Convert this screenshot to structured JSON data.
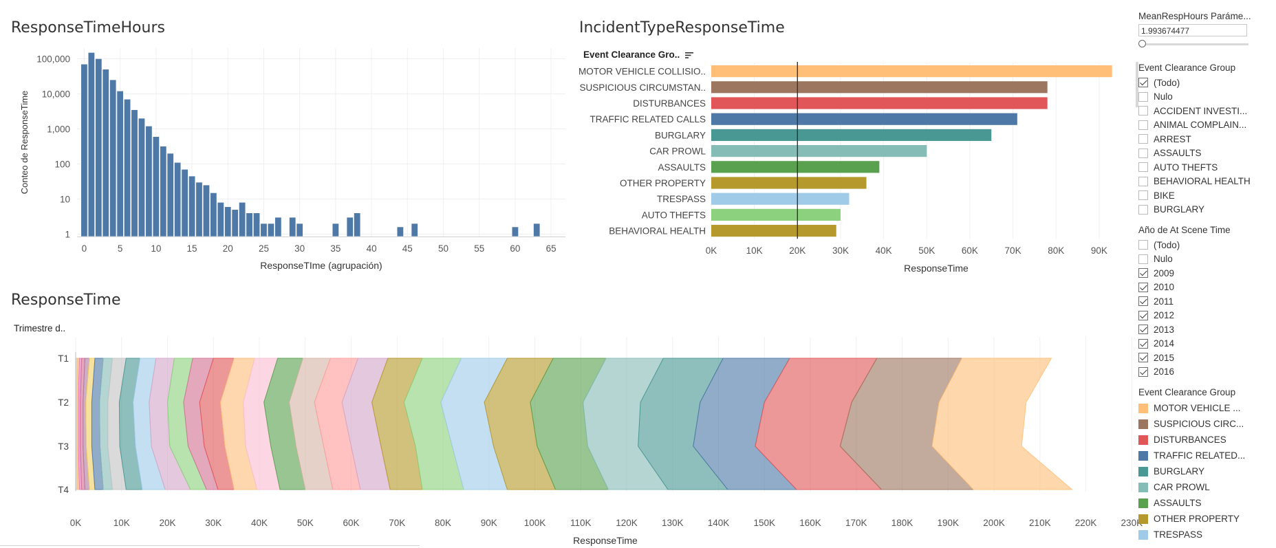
{
  "histogram": {
    "title": "ResponseTimeHours",
    "chart_data": {
      "type": "bar",
      "scale": "log",
      "ylabel": "Conteo de ResponseTime",
      "xlabel": "ResponseTIme (agrupación)",
      "xticks": [
        0,
        5,
        10,
        15,
        20,
        25,
        30,
        35,
        40,
        45,
        50,
        55,
        60,
        65
      ],
      "yticks": [
        {
          "v": 1,
          "label": "1"
        },
        {
          "v": 10,
          "label": "10"
        },
        {
          "v": 100,
          "label": "100"
        },
        {
          "v": 1000,
          "label": "1,000"
        },
        {
          "v": 10000,
          "label": "10,000"
        },
        {
          "v": 100000,
          "label": "100,000"
        }
      ],
      "bins": [
        {
          "x": 0,
          "v": 70000
        },
        {
          "x": 1,
          "v": 150000
        },
        {
          "x": 2,
          "v": 100000
        },
        {
          "x": 3,
          "v": 50000
        },
        {
          "x": 4,
          "v": 25000
        },
        {
          "x": 5,
          "v": 12000
        },
        {
          "x": 6,
          "v": 7000
        },
        {
          "x": 7,
          "v": 3500
        },
        {
          "x": 8,
          "v": 2000
        },
        {
          "x": 9,
          "v": 1200
        },
        {
          "x": 10,
          "v": 600
        },
        {
          "x": 11,
          "v": 320
        },
        {
          "x": 12,
          "v": 200
        },
        {
          "x": 13,
          "v": 110
        },
        {
          "x": 14,
          "v": 70
        },
        {
          "x": 15,
          "v": 45
        },
        {
          "x": 16,
          "v": 30
        },
        {
          "x": 17,
          "v": 25
        },
        {
          "x": 18,
          "v": 15
        },
        {
          "x": 19,
          "v": 8
        },
        {
          "x": 20,
          "v": 6
        },
        {
          "x": 21,
          "v": 5
        },
        {
          "x": 22,
          "v": 8
        },
        {
          "x": 23,
          "v": 4
        },
        {
          "x": 24,
          "v": 4
        },
        {
          "x": 25,
          "v": 2
        },
        {
          "x": 26,
          "v": 2
        },
        {
          "x": 27,
          "v": 3
        },
        {
          "x": 29,
          "v": 3
        },
        {
          "x": 30,
          "v": 2
        },
        {
          "x": 35,
          "v": 2
        },
        {
          "x": 37,
          "v": 3
        },
        {
          "x": 38,
          "v": 4
        },
        {
          "x": 44,
          "v": 1.6
        },
        {
          "x": 46,
          "v": 2
        },
        {
          "x": 60,
          "v": 1.6
        },
        {
          "x": 63,
          "v": 2
        }
      ]
    }
  },
  "incident": {
    "title": "IncidentTypeResponseTime",
    "field_header": "Event Clearance Gro..",
    "sort_icon": "sort-descending-icon",
    "chart_data": {
      "type": "bar",
      "orientation": "horizontal",
      "xlabel": "ResponseTime",
      "xticks": [
        0,
        10000,
        20000,
        30000,
        40000,
        50000,
        60000,
        70000,
        80000,
        90000
      ],
      "xtick_labels": [
        "0K",
        "10K",
        "20K",
        "30K",
        "40K",
        "50K",
        "60K",
        "70K",
        "80K",
        "90K"
      ],
      "reference_line": 20000,
      "categories": [
        "MOTOR VEHICLE COLLISIO..",
        "SUSPICIOUS CIRCUMSTAN..",
        "DISTURBANCES",
        "TRAFFIC RELATED CALLS",
        "BURGLARY",
        "CAR PROWL",
        "ASSAULTS",
        "OTHER PROPERTY",
        "TRESPASS",
        "AUTO THEFTS",
        "BEHAVIORAL HEALTH"
      ],
      "values": [
        93000,
        78000,
        78000,
        71000,
        65000,
        50000,
        39000,
        36000,
        32000,
        30000,
        29000
      ],
      "colors": [
        "#ffbf79",
        "#9d7660",
        "#e15759",
        "#4e79a7",
        "#499894",
        "#86bcb6",
        "#59a14f",
        "#b6992d",
        "#a0cbe8",
        "#8cd17d",
        "#b6992d"
      ]
    }
  },
  "area": {
    "title": "ResponseTime",
    "field_header": "Trimestre d..",
    "chart_data": {
      "type": "area",
      "stacked": true,
      "orientation": "horizontal",
      "categories": [
        "T1",
        "T2",
        "T3",
        "T4"
      ],
      "xlabel": "ResponseTime",
      "xticks": [
        0,
        10000,
        20000,
        30000,
        40000,
        50000,
        60000,
        70000,
        80000,
        90000,
        100000,
        110000,
        120000,
        130000,
        140000,
        150000,
        160000,
        170000,
        180000,
        190000,
        200000,
        210000,
        220000,
        230000
      ],
      "xtick_labels": [
        "0K",
        "10K",
        "20K",
        "30K",
        "40K",
        "50K",
        "60K",
        "70K",
        "80K",
        "90K",
        "100K",
        "110K",
        "120K",
        "130K",
        "140K",
        "150K",
        "160K",
        "170K",
        "180K",
        "190K",
        "200K",
        "210K",
        "220K",
        "230K"
      ],
      "boundaries": [
        [
          0,
          0,
          0,
          0
        ],
        [
          400,
          300,
          300,
          400
        ],
        [
          800,
          600,
          600,
          800
        ],
        [
          1300,
          1000,
          1000,
          1300
        ],
        [
          2000,
          1600,
          1600,
          2000
        ],
        [
          3000,
          2200,
          2300,
          3000
        ],
        [
          4200,
          3500,
          3500,
          4200
        ],
        [
          6000,
          5200,
          5300,
          6000
        ],
        [
          8000,
          7000,
          7000,
          8000
        ],
        [
          11000,
          9500,
          9600,
          11000
        ],
        [
          14000,
          12500,
          13000,
          14500
        ],
        [
          17500,
          16000,
          16500,
          19500
        ],
        [
          21500,
          20000,
          20500,
          25000
        ],
        [
          25500,
          23500,
          24500,
          28500
        ],
        [
          30000,
          27000,
          28000,
          31000
        ],
        [
          34500,
          31500,
          32500,
          34500
        ],
        [
          39000,
          36500,
          37000,
          39500
        ],
        [
          44000,
          41000,
          42500,
          44500
        ],
        [
          49500,
          46500,
          48000,
          50000
        ],
        [
          55500,
          52000,
          54000,
          56000
        ],
        [
          61500,
          58000,
          60000,
          62000
        ],
        [
          68000,
          64500,
          66500,
          68500
        ],
        [
          75500,
          71500,
          74000,
          75500
        ],
        [
          84000,
          79500,
          82000,
          84500
        ],
        [
          94000,
          89000,
          91000,
          94000
        ],
        [
          104000,
          99000,
          100500,
          104500
        ],
        [
          115500,
          110500,
          111500,
          116000
        ],
        [
          128000,
          123000,
          122500,
          129000
        ],
        [
          141000,
          136000,
          134500,
          142000
        ],
        [
          155500,
          150000,
          148000,
          157000
        ],
        [
          174500,
          169000,
          166500,
          175500
        ],
        [
          193000,
          188000,
          186500,
          195500
        ],
        [
          212500,
          207000,
          206000,
          217000
        ]
      ],
      "colors": [
        "#c4c4c4",
        "#ffbf79",
        "#e377c2",
        "#d37295",
        "#b07aa1",
        "#f1ce63",
        "#4e79a7",
        "#86bcb6",
        "#c4c4c4",
        "#499894",
        "#a0cbe8",
        "#d4a6c8",
        "#8cd17d",
        "#d37295",
        "#e15759",
        "#ffbe7d",
        "#fabfd2",
        "#59a14f",
        "#d7b5a6",
        "#ff9d9a",
        "#d4a6c8",
        "#b6992d",
        "#8cd17d",
        "#a0cbe8",
        "#b6992d",
        "#59a14f",
        "#86bcb6",
        "#499894",
        "#4e79a7",
        "#e15759",
        "#9d7660",
        "#ffbf79"
      ]
    }
  },
  "sidebar": {
    "param": {
      "label": "MeanRespHours Paráme...",
      "value": "1.993674477"
    },
    "filter1": {
      "label": "Event Clearance Group",
      "items": [
        {
          "label": "(Todo)",
          "checked": true
        },
        {
          "label": "Nulo",
          "checked": false
        },
        {
          "label": "ACCIDENT INVESTI...",
          "checked": false
        },
        {
          "label": "ANIMAL COMPLAIN...",
          "checked": false
        },
        {
          "label": "ARREST",
          "checked": false
        },
        {
          "label": "ASSAULTS",
          "checked": false
        },
        {
          "label": "AUTO THEFTS",
          "checked": false
        },
        {
          "label": "BEHAVIORAL HEALTH",
          "checked": false
        },
        {
          "label": "BIKE",
          "checked": false
        },
        {
          "label": "BURGLARY",
          "checked": false
        }
      ]
    },
    "filter2": {
      "label": "Año de At Scene Time",
      "items": [
        {
          "label": "(Todo)",
          "checked": false
        },
        {
          "label": "Nulo",
          "checked": false
        },
        {
          "label": "2009",
          "checked": true
        },
        {
          "label": "2010",
          "checked": true
        },
        {
          "label": "2011",
          "checked": true
        },
        {
          "label": "2012",
          "checked": true
        },
        {
          "label": "2013",
          "checked": true
        },
        {
          "label": "2014",
          "checked": true
        },
        {
          "label": "2015",
          "checked": true
        },
        {
          "label": "2016",
          "checked": true
        }
      ]
    },
    "legend": {
      "label": "Event Clearance Group",
      "items": [
        {
          "label": "MOTOR VEHICLE ...",
          "color": "#ffbf79"
        },
        {
          "label": "SUSPICIOUS CIRC...",
          "color": "#9d7660"
        },
        {
          "label": "DISTURBANCES",
          "color": "#e15759"
        },
        {
          "label": "TRAFFIC RELATED...",
          "color": "#4e79a7"
        },
        {
          "label": "BURGLARY",
          "color": "#499894"
        },
        {
          "label": "CAR PROWL",
          "color": "#86bcb6"
        },
        {
          "label": "ASSAULTS",
          "color": "#59a14f"
        },
        {
          "label": "OTHER PROPERTY",
          "color": "#b6992d"
        },
        {
          "label": "TRESPASS",
          "color": "#a0cbe8"
        }
      ]
    }
  }
}
